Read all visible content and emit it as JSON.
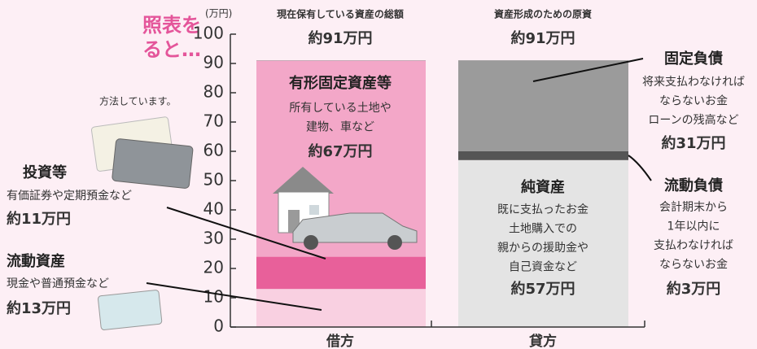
{
  "page_text": {
    "title_lines": [
      "照表を",
      "ると…"
    ],
    "note": "方法しています。"
  },
  "chart_data": {
    "type": "bar",
    "stacked": true,
    "y_unit": "(万円)",
    "categories": [
      "借方",
      "貸方"
    ],
    "column_titles": [
      "現在保有している資産の総額",
      "資産形成のための原資"
    ],
    "totals": [
      91,
      91
    ],
    "total_labels": [
      "約91万円",
      "約91万円"
    ],
    "ylim": [
      0,
      100
    ],
    "yticks": [
      0,
      10,
      20,
      30,
      40,
      50,
      60,
      70,
      80,
      90,
      100
    ],
    "series": [
      {
        "name": "流動資産",
        "color": "#f9d0e1",
        "values": [
          13,
          null
        ],
        "value_labels": [
          "約13万円",
          null
        ],
        "description": [
          "現金や普通預金など"
        ]
      },
      {
        "name": "投資等",
        "color": "#e8609a",
        "values": [
          11,
          null
        ],
        "value_labels": [
          "約11万円",
          null
        ],
        "description": [
          "有価証券や定期預金など"
        ]
      },
      {
        "name": "有形固定資産等",
        "color": "#f3a7c8",
        "values": [
          67,
          null
        ],
        "value_labels": [
          "約67万円",
          null
        ],
        "description": [
          "所有している土地や",
          "建物、車など"
        ]
      },
      {
        "name": "純資産",
        "color": "#e4e4e4",
        "values": [
          null,
          57
        ],
        "value_labels": [
          null,
          "約57万円"
        ],
        "description": [
          "既に支払ったお金",
          "土地購入での",
          "親からの援助金や",
          "自己資金など"
        ]
      },
      {
        "name": "流動負債",
        "color": "#555555",
        "values": [
          null,
          3
        ],
        "value_labels": [
          null,
          "約3万円"
        ],
        "description": [
          "会計期末から",
          "1年以内に",
          "支払わなければ",
          "ならないお金"
        ]
      },
      {
        "name": "固定負債",
        "color": "#9b9b9b",
        "values": [
          null,
          31
        ],
        "value_labels": [
          null,
          "約31万円"
        ],
        "description": [
          "将来支払わなければ",
          "ならないお金",
          "ローンの残高など"
        ]
      }
    ]
  }
}
